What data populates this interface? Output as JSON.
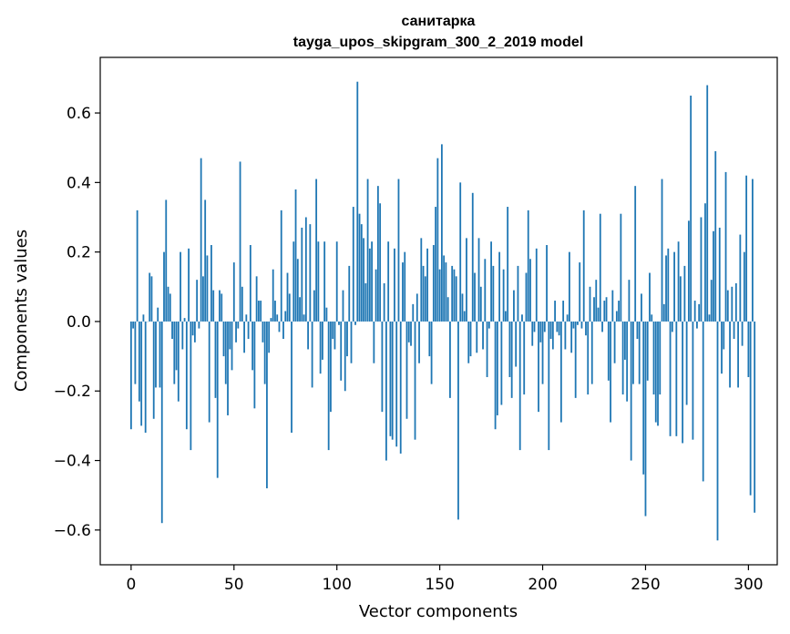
{
  "chart_data": {
    "type": "bar",
    "title": "санитарка",
    "subtitle": "tayga_upos_skipgram_300_2_2019 model",
    "xlabel": "Vector components",
    "ylabel": "Components values",
    "xlim": [
      -15,
      314
    ],
    "ylim": [
      -0.7,
      0.76
    ],
    "xticks": [
      0,
      50,
      100,
      150,
      200,
      250,
      300
    ],
    "xtick_labels": [
      "0",
      "50",
      "100",
      "150",
      "200",
      "250",
      "300"
    ],
    "yticks": [
      -0.6,
      -0.4,
      -0.2,
      0.0,
      0.2,
      0.4,
      0.6
    ],
    "ytick_labels": [
      "−0.6",
      "−0.4",
      "−0.2",
      "0.0",
      "0.2",
      "0.4",
      "0.6"
    ],
    "bar_color": "#1f77b4",
    "values": [
      -0.31,
      -0.02,
      -0.18,
      0.32,
      -0.23,
      -0.3,
      0.02,
      -0.32,
      0.0,
      0.14,
      0.13,
      -0.28,
      -0.19,
      0.04,
      -0.19,
      -0.58,
      0.2,
      0.35,
      0.1,
      0.08,
      -0.05,
      -0.18,
      -0.14,
      -0.23,
      0.2,
      -0.08,
      0.01,
      -0.31,
      0.21,
      -0.37,
      -0.04,
      -0.06,
      0.12,
      -0.02,
      0.47,
      0.13,
      0.35,
      0.19,
      -0.29,
      0.22,
      0.09,
      -0.22,
      -0.45,
      0.09,
      0.08,
      -0.1,
      -0.18,
      -0.27,
      -0.08,
      -0.14,
      0.17,
      -0.06,
      -0.02,
      0.46,
      0.1,
      -0.09,
      0.02,
      -0.05,
      0.22,
      -0.14,
      -0.25,
      0.13,
      0.06,
      0.06,
      -0.06,
      -0.18,
      -0.48,
      -0.09,
      0.01,
      0.15,
      0.06,
      0.02,
      -0.03,
      0.32,
      -0.05,
      0.03,
      0.14,
      0.08,
      -0.32,
      0.23,
      0.38,
      0.18,
      0.07,
      0.27,
      0.02,
      0.3,
      -0.08,
      0.28,
      -0.19,
      0.09,
      0.41,
      0.23,
      -0.15,
      -0.11,
      0.23,
      0.04,
      -0.37,
      -0.26,
      -0.05,
      -0.08,
      0.23,
      -0.01,
      -0.17,
      0.09,
      -0.2,
      -0.1,
      0.16,
      -0.12,
      0.33,
      -0.01,
      0.69,
      0.31,
      0.28,
      0.24,
      0.11,
      0.41,
      0.21,
      0.23,
      -0.12,
      0.15,
      0.39,
      0.34,
      -0.26,
      0.11,
      -0.4,
      0.23,
      -0.33,
      -0.34,
      0.21,
      -0.36,
      0.41,
      -0.38,
      0.17,
      0.2,
      -0.28,
      -0.06,
      -0.07,
      0.05,
      -0.34,
      0.08,
      -0.12,
      0.24,
      0.16,
      0.13,
      0.21,
      -0.1,
      -0.18,
      0.22,
      0.33,
      0.47,
      0.15,
      0.51,
      0.19,
      0.17,
      0.07,
      -0.22,
      0.16,
      0.15,
      0.13,
      -0.57,
      0.4,
      0.08,
      0.03,
      0.24,
      -0.12,
      -0.1,
      0.37,
      0.14,
      -0.09,
      0.24,
      0.1,
      -0.08,
      0.18,
      -0.16,
      -0.02,
      0.23,
      0.16,
      -0.31,
      -0.27,
      0.2,
      -0.24,
      0.15,
      0.03,
      0.33,
      -0.16,
      -0.22,
      0.09,
      -0.13,
      0.16,
      -0.37,
      0.02,
      -0.21,
      0.14,
      0.32,
      0.18,
      -0.07,
      -0.03,
      0.21,
      -0.26,
      -0.06,
      -0.18,
      -0.03,
      0.22,
      -0.37,
      -0.05,
      -0.08,
      0.06,
      -0.03,
      -0.04,
      -0.29,
      0.06,
      -0.08,
      0.02,
      0.2,
      -0.09,
      -0.02,
      -0.22,
      -0.01,
      0.17,
      -0.02,
      0.32,
      -0.04,
      -0.21,
      0.1,
      -0.18,
      0.07,
      0.12,
      0.04,
      0.31,
      -0.03,
      0.06,
      0.07,
      -0.17,
      -0.29,
      0.09,
      -0.12,
      0.03,
      0.06,
      0.31,
      -0.21,
      -0.11,
      -0.23,
      0.12,
      -0.4,
      -0.18,
      0.39,
      -0.05,
      -0.18,
      0.08,
      -0.44,
      -0.56,
      -0.17,
      0.14,
      0.02,
      -0.21,
      -0.29,
      -0.3,
      -0.21,
      0.41,
      0.05,
      0.19,
      0.21,
      -0.33,
      -0.03,
      0.2,
      -0.33,
      0.23,
      0.13,
      -0.35,
      0.16,
      -0.24,
      0.29,
      0.65,
      -0.34,
      0.06,
      -0.02,
      0.05,
      0.3,
      -0.46,
      0.34,
      0.68,
      0.02,
      0.12,
      0.26,
      0.49,
      -0.63,
      0.27,
      -0.15,
      -0.08,
      0.43,
      0.09,
      -0.19,
      0.1,
      -0.05,
      0.11,
      -0.19,
      0.25,
      -0.07,
      0.2,
      0.42,
      -0.16,
      -0.5,
      0.41,
      -0.55
    ]
  }
}
